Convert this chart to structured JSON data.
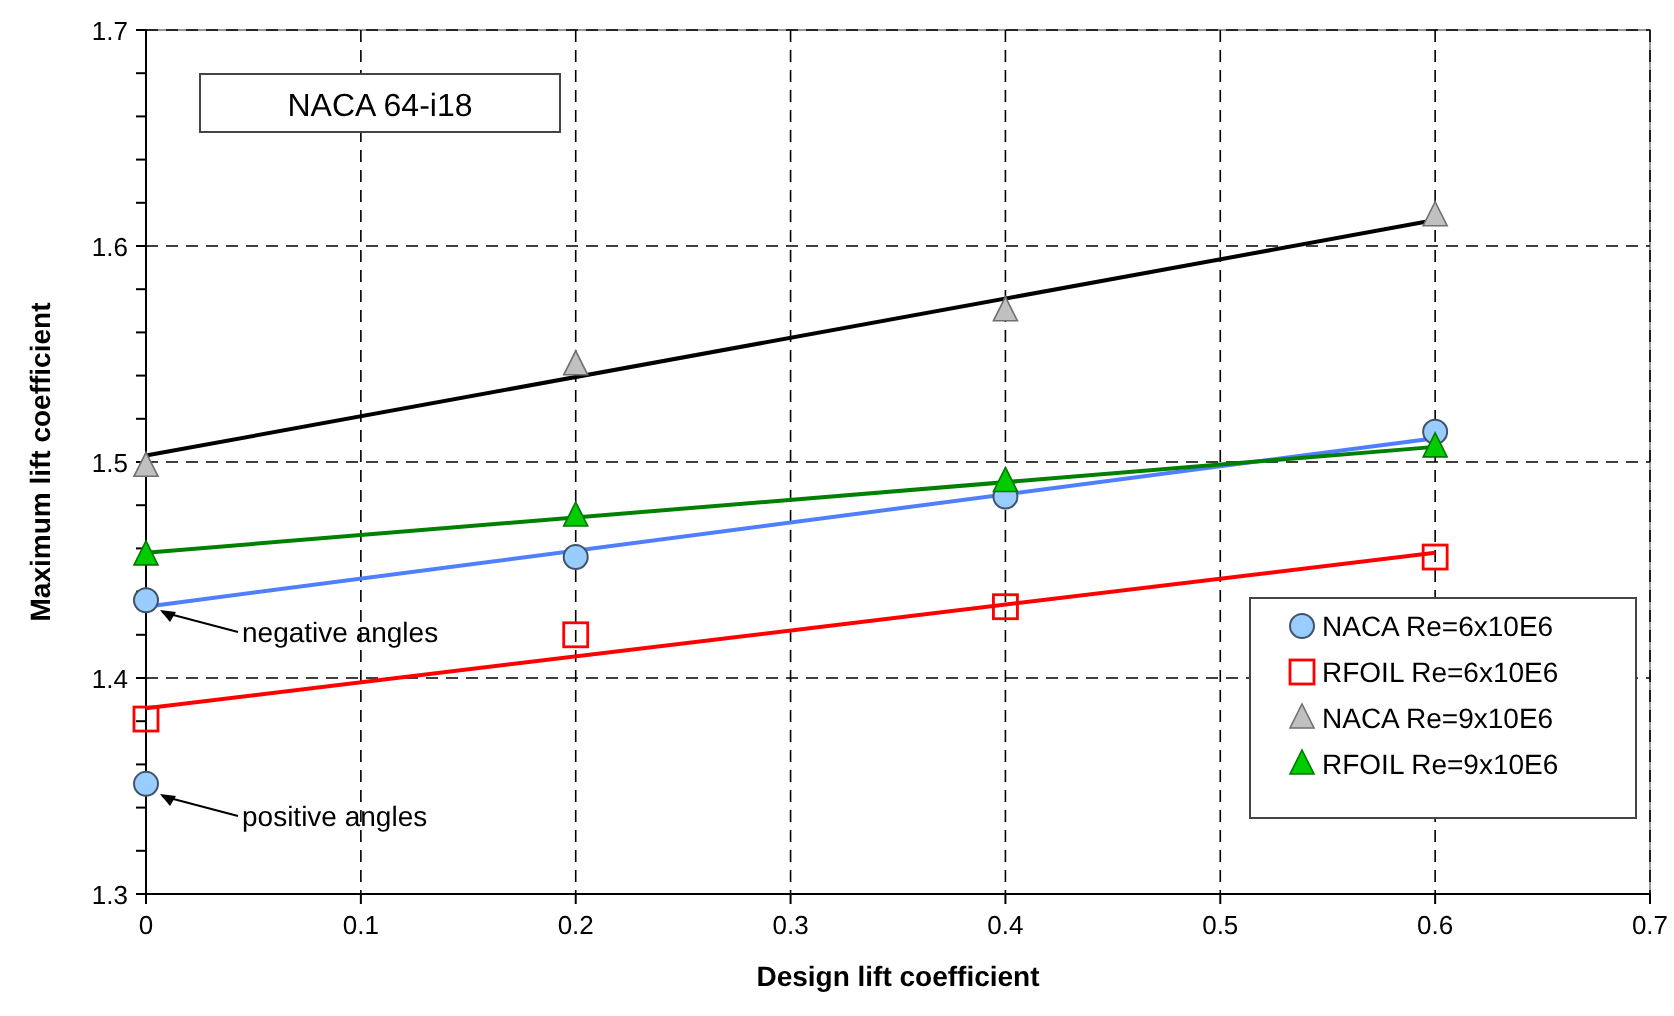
{
  "chart_data": {
    "type": "scatter",
    "xlabel": "Design lift coefficient",
    "ylabel": "Maximum lift coefficient",
    "xlim": [
      0,
      0.7
    ],
    "xticks": [
      0,
      0.1,
      0.2,
      0.3,
      0.4,
      0.5,
      0.6,
      0.7
    ],
    "ylim": [
      1.3,
      1.7
    ],
    "yticks": [
      1.3,
      {
        "value": 1.32,
        "label": null
      },
      {
        "value": 1.34,
        "label": null
      },
      {
        "value": 1.36,
        "label": null
      },
      {
        "value": 1.38,
        "label": null
      },
      1.4,
      {
        "value": 1.42,
        "label": null
      },
      {
        "value": 1.44,
        "label": null
      },
      {
        "value": 1.46,
        "label": null
      },
      {
        "value": 1.48,
        "label": null
      },
      1.5,
      {
        "value": 1.52,
        "label": null
      },
      {
        "value": 1.54,
        "label": null
      },
      {
        "value": 1.56,
        "label": null
      },
      {
        "value": 1.58,
        "label": null
      },
      1.6,
      {
        "value": 1.62,
        "label": null
      },
      {
        "value": 1.64,
        "label": null
      },
      {
        "value": 1.66,
        "label": null
      },
      {
        "value": 1.68,
        "label": null
      },
      1.7
    ],
    "grid": true,
    "legend": "bottom right",
    "series": [
      {
        "type": "line",
        "color": "#4f7fff",
        "x": [
          0,
          0.6
        ],
        "values": [
          1.433,
          1.511
        ]
      },
      {
        "type": "line",
        "color": "#ff0000",
        "x": [
          0,
          0.6
        ],
        "values": [
          1.386,
          1.458
        ]
      },
      {
        "type": "line",
        "color": "#000000",
        "x": [
          0,
          0.6
        ],
        "values": [
          1.503,
          1.612
        ]
      },
      {
        "type": "line",
        "color": "#008000",
        "x": [
          0,
          0.6
        ],
        "values": [
          1.458,
          1.507
        ]
      },
      {
        "name": "NACA Re=6x10E6",
        "marker": "circle",
        "color": "#99ccff",
        "x": [
          0,
          0,
          0.2,
          0.4,
          0.6
        ],
        "values": [
          1.436,
          1.351,
          1.456,
          1.484,
          1.514
        ]
      },
      {
        "name": "RFOIL Re=6x10E6",
        "marker": "square",
        "color": "#ff0000",
        "x": [
          0,
          0.2,
          0.4,
          0.6
        ],
        "values": [
          1.381,
          1.42,
          1.433,
          1.456
        ]
      },
      {
        "name": "NACA Re=9x10E6",
        "marker": "triangle",
        "color": "#c0c0c0",
        "x": [
          0,
          0.2,
          0.4,
          0.6
        ],
        "values": [
          1.498,
          1.545,
          1.57,
          1.614
        ]
      },
      {
        "name": "RFOIL Re=9x10E6",
        "marker": "triangle",
        "color": "#00cc00",
        "x": [
          0,
          0.2,
          0.4,
          0.6
        ],
        "values": [
          1.457,
          1.475,
          1.491,
          1.507
        ]
      }
    ],
    "annotations": [
      "NACA 64-i18",
      "negative angles",
      "positive angles"
    ]
  }
}
